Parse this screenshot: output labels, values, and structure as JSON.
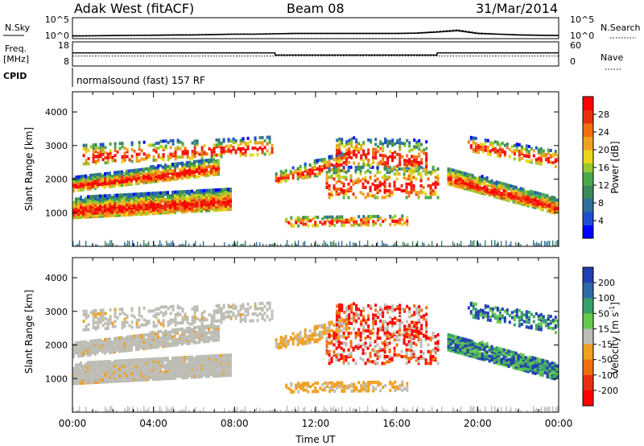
{
  "header": {
    "station": "Adak West (fitACF)",
    "beam": "Beam 08",
    "date": "31/Mar/2014"
  },
  "left_labels": {
    "nsky": "N.Sky",
    "freq_line1": "Freq.",
    "freq_line2": "[MHz]",
    "cpid": "CPID"
  },
  "right_labels": {
    "nsearch": "N.Search",
    "nave": "Nave"
  },
  "cpid_text": "normalsound (fast) 157 RF",
  "colors": {
    "background": "#ffffff",
    "trace": "#000000"
  },
  "chart_data": [
    {
      "type": "line",
      "panel": "noise",
      "y_tick_labels_left": [
        "10^5",
        "10^0"
      ],
      "y_tick_labels_right": [
        "10^5",
        "10^0"
      ],
      "ylim": [
        0,
        5
      ],
      "scale": "log",
      "series": [
        {
          "name": "N.Sky",
          "style": "solid"
        },
        {
          "name": "N.Search",
          "style": "dotted"
        }
      ],
      "x": [
        0,
        1,
        2,
        3,
        4,
        5,
        6,
        7,
        8,
        9,
        10,
        11,
        12,
        13,
        14,
        15,
        16,
        17,
        18,
        19,
        20,
        21,
        22,
        23,
        24
      ],
      "values_sky": [
        0.3,
        0.35,
        0.4,
        0.45,
        0.5,
        0.55,
        0.6,
        0.7,
        0.8,
        0.8,
        0.9,
        1.0,
        1.0,
        1.0,
        1.0,
        1.0,
        1.0,
        1.1,
        1.4,
        1.8,
        1.0,
        0.8,
        0.6,
        0.5,
        0.4
      ],
      "values_search": [
        0.4,
        0.45,
        0.5,
        0.55,
        0.6,
        0.7,
        0.7,
        0.8,
        0.9,
        0.9,
        1.0,
        1.1,
        1.1,
        1.1,
        1.1,
        1.1,
        1.1,
        1.2,
        1.6,
        2.1,
        1.2,
        0.9,
        0.7,
        0.6,
        0.5
      ]
    },
    {
      "type": "line",
      "panel": "frequency",
      "y_tick_labels_left": [
        "18",
        "8"
      ],
      "y_tick_labels_right": [
        "60",
        "0"
      ],
      "ylim_left": [
        8,
        18
      ],
      "ylim_right": [
        0,
        60
      ],
      "series": [
        {
          "name": "Freq.",
          "units": "MHz",
          "x": [
            0,
            10,
            10,
            18,
            18,
            24
          ],
          "values": [
            13.5,
            13.5,
            12.5,
            12.5,
            13.5,
            13.5
          ]
        },
        {
          "name": "Nave",
          "x": [
            0,
            24
          ],
          "values": [
            24,
            24
          ]
        }
      ]
    },
    {
      "type": "heatmap",
      "panel": "power",
      "ylabel": "Slant Range [km]",
      "y_ticks": [
        1000,
        2000,
        3000,
        4000
      ],
      "ylim": [
        0,
        4600
      ],
      "xlim_hours": [
        0,
        24
      ],
      "colorbar_label": "Power [dB]",
      "colorbar_ticks": [
        4,
        8,
        12,
        16,
        20,
        24,
        28
      ],
      "colorbar_range": [
        0,
        32
      ]
    },
    {
      "type": "heatmap",
      "panel": "velocity",
      "ylabel": "Slant Range [km]",
      "y_ticks": [
        1000,
        2000,
        3000,
        4000
      ],
      "ylim": [
        0,
        4600
      ],
      "xlim_hours": [
        0,
        24
      ],
      "xlabel": "Time UT",
      "x_tick_labels": [
        "00:00",
        "04:00",
        "08:00",
        "12:00",
        "16:00",
        "20:00",
        "00:00"
      ],
      "x_ticks_hours": [
        0,
        4,
        8,
        12,
        16,
        20,
        24
      ],
      "colorbar_label": "Velocity [m s",
      "colorbar_label_sup": "-1",
      "colorbar_label_close": "]",
      "colorbar_ticks": [
        "200",
        "100",
        "50",
        "15",
        "-15",
        "-50",
        "-100",
        "-200"
      ]
    }
  ]
}
